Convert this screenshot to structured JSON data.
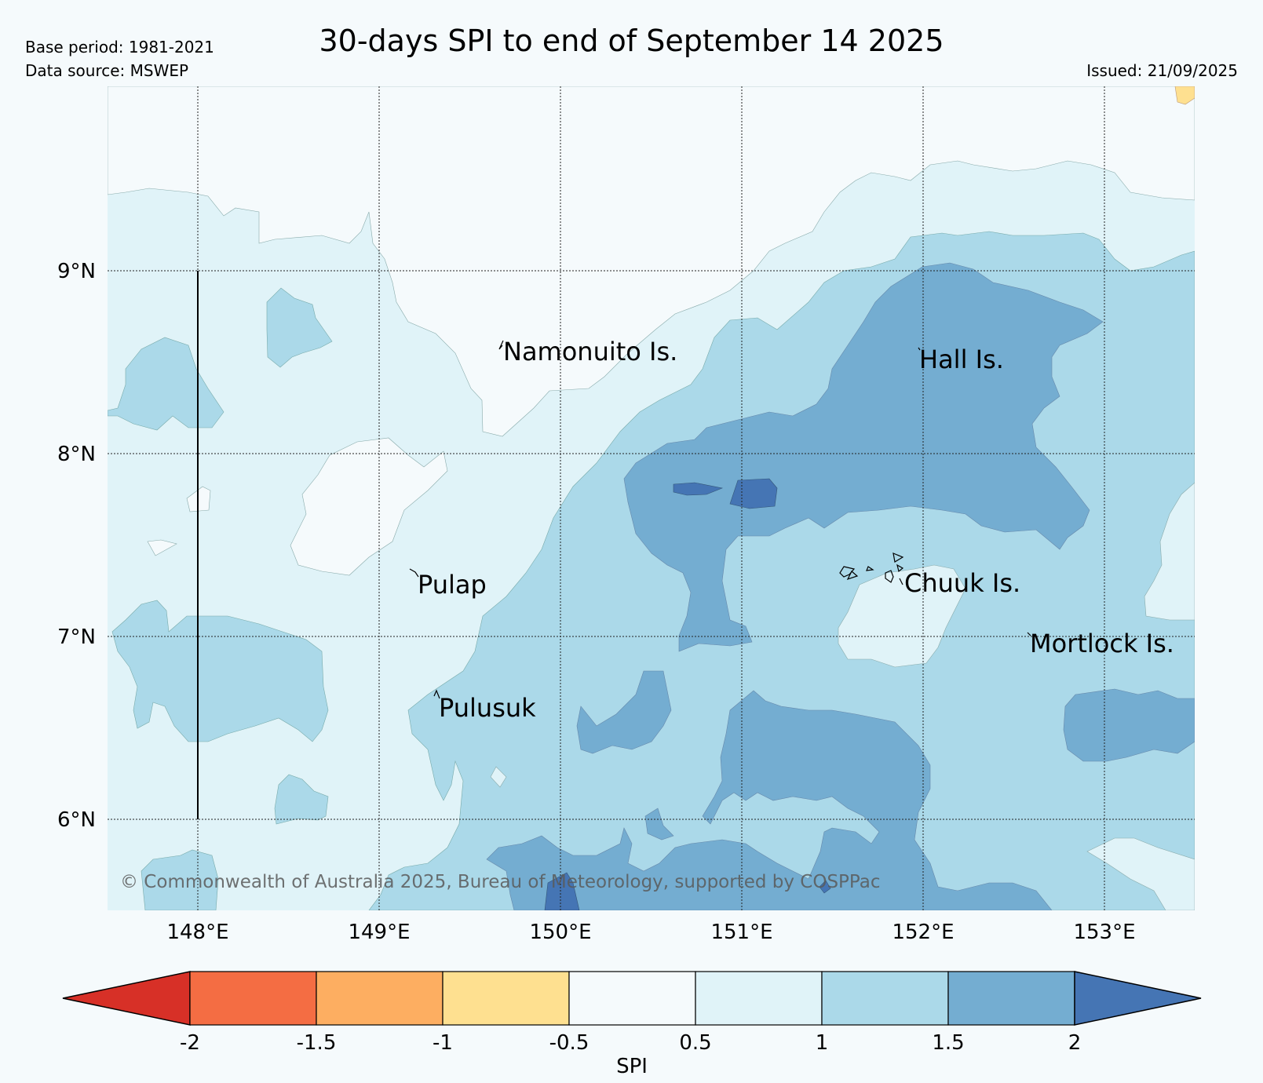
{
  "header": {
    "base_period": "Base period: 1981-2021",
    "data_source": "Data source: MSWEP",
    "issued": "Issued: 21/09/2025",
    "title": "30-days SPI to end of September 14 2025"
  },
  "map": {
    "lat_labels": [
      "9°N",
      "8°N",
      "7°N",
      "6°N"
    ],
    "lon_labels": [
      "148°E",
      "149°E",
      "150°E",
      "151°E",
      "152°E",
      "153°E"
    ],
    "places": [
      {
        "id": "namonuito",
        "name": "Namonuito Is."
      },
      {
        "id": "hall",
        "name": "Hall Is."
      },
      {
        "id": "pulap",
        "name": "Pulap"
      },
      {
        "id": "chuuk",
        "name": "Chuuk Is."
      },
      {
        "id": "mortlock",
        "name": "Mortlock Is."
      },
      {
        "id": "pulusuk",
        "name": "Pulusuk"
      }
    ],
    "copyright": "© Commonwealth of Australia 2025, Bureau of Meteorology, supported by COSPPac"
  },
  "colorbar": {
    "label": "SPI",
    "ticks": [
      "-2",
      "-1.5",
      "-1",
      "-0.5",
      "0.5",
      "1",
      "1.5",
      "2"
    ],
    "colors": [
      "#d73027",
      "#f46d43",
      "#fdae61",
      "#fee090",
      "#f5fafc",
      "#e0f3f8",
      "#abd9e9",
      "#74add1",
      "#4575b4"
    ]
  }
}
